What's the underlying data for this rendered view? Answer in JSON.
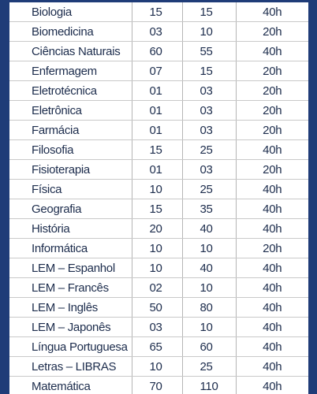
{
  "table": {
    "rows": [
      [
        "Biologia",
        "15",
        "15",
        "40h"
      ],
      [
        "Biomedicina",
        "03",
        "10",
        "20h"
      ],
      [
        "Ciências Naturais",
        "60",
        "55",
        "40h"
      ],
      [
        "Enfermagem",
        "07",
        "15",
        "20h"
      ],
      [
        "Eletrotécnica",
        "01",
        "03",
        "20h"
      ],
      [
        "Eletrônica",
        "01",
        "03",
        "20h"
      ],
      [
        "Farmácia",
        "01",
        "03",
        "20h"
      ],
      [
        "Filosofia",
        "15",
        "25",
        "40h"
      ],
      [
        "Fisioterapia",
        "01",
        "03",
        "20h"
      ],
      [
        "Física",
        "10",
        "25",
        "40h"
      ],
      [
        "Geografia",
        "15",
        "35",
        "40h"
      ],
      [
        "História",
        "20",
        "40",
        "40h"
      ],
      [
        "Informática",
        "10",
        "10",
        "20h"
      ],
      [
        "LEM – Espanhol",
        "10",
        "40",
        "40h"
      ],
      [
        "LEM – Francês",
        "02",
        "10",
        "40h"
      ],
      [
        "LEM – Inglês",
        "50",
        "80",
        "40h"
      ],
      [
        "LEM – Japonês",
        "03",
        "10",
        "40h"
      ],
      [
        "Língua Portuguesa",
        "65",
        "60",
        "40h"
      ],
      [
        "Letras – LIBRAS",
        "10",
        "25",
        "40h"
      ],
      [
        "Matemática",
        "70",
        "110",
        "40h"
      ]
    ]
  }
}
